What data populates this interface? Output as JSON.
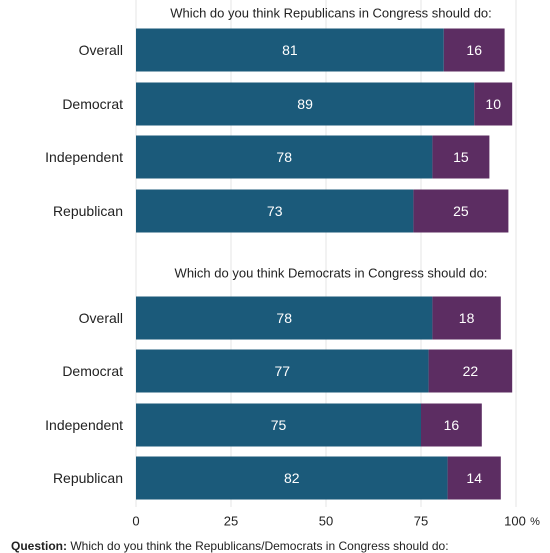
{
  "chart_data": [
    {
      "type": "bar",
      "orientation": "horizontal",
      "stacked": true,
      "title": "Which do you think Republicans in Congress should do:",
      "categories": [
        "Overall",
        "Democrat",
        "Independent",
        "Republican"
      ],
      "series": [
        {
          "values": [
            81,
            89,
            78,
            73
          ],
          "color": "#1b5a7a"
        },
        {
          "values": [
            16,
            10,
            15,
            25
          ],
          "color": "#5c2d62"
        }
      ]
    },
    {
      "type": "bar",
      "orientation": "horizontal",
      "stacked": true,
      "title": "Which do you think Democrats in Congress should do:",
      "categories": [
        "Overall",
        "Democrat",
        "Independent",
        "Republican"
      ],
      "series": [
        {
          "values": [
            78,
            77,
            75,
            82
          ],
          "color": "#1b5a7a"
        },
        {
          "values": [
            18,
            22,
            16,
            14
          ],
          "color": "#5c2d62"
        }
      ]
    }
  ],
  "x_axis": {
    "ticks": [
      0,
      25,
      50,
      75,
      100
    ],
    "tick_labels": [
      "0",
      "25",
      "50",
      "75",
      "100"
    ],
    "unit": "%",
    "xlim": [
      0,
      100
    ],
    "grid": true
  },
  "footnote": {
    "label": "Question:",
    "text": "Which do you think the Republicans/Democrats in Congress should do:"
  }
}
